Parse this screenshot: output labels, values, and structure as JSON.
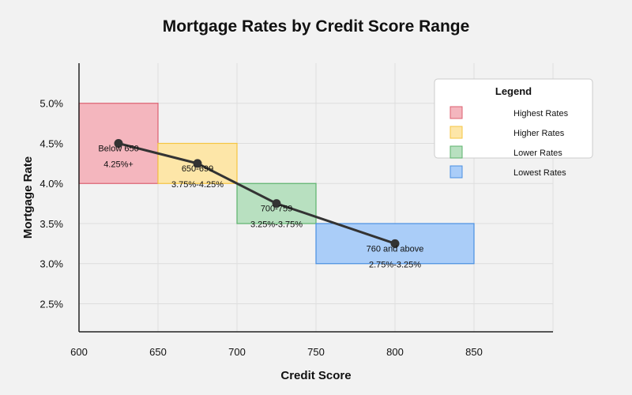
{
  "chart_data": {
    "type": "line",
    "title": "Mortgage Rates by Credit Score Range",
    "xlabel": "Credit Score",
    "ylabel": "Mortgage Rate",
    "xlim": [
      600,
      900
    ],
    "ylim": [
      2.15,
      5.5
    ],
    "x_ticks": [
      600,
      650,
      700,
      750,
      800,
      850
    ],
    "y_ticks": [
      2.5,
      3.0,
      3.5,
      4.0,
      4.5,
      5.0
    ],
    "y_tick_suffix": "%",
    "grid": true,
    "ranges": [
      {
        "label": "Below 650",
        "rate_text": "4.25%+",
        "x0": 600,
        "x1": 650,
        "y0": 4.0,
        "y1": 5.0,
        "category": "Highest Rates"
      },
      {
        "label": "650-699",
        "rate_text": "3.75%-4.25%",
        "x0": 650,
        "x1": 700,
        "y0": 4.0,
        "y1": 4.5,
        "category": "Higher Rates"
      },
      {
        "label": "700-759",
        "rate_text": "3.25%-3.75%",
        "x0": 700,
        "x1": 750,
        "y0": 3.5,
        "y1": 4.0,
        "category": "Lower Rates"
      },
      {
        "label": "760 and above",
        "rate_text": "2.75%-3.25%",
        "x0": 750,
        "x1": 850,
        "y0": 3.0,
        "y1": 3.5,
        "category": "Lowest Rates"
      }
    ],
    "line": {
      "x": [
        625,
        675,
        725,
        800
      ],
      "y": [
        4.5,
        4.25,
        3.75,
        3.25
      ]
    },
    "legend": {
      "title": "Legend",
      "position": "top-right",
      "items": [
        {
          "label": "Highest Rates",
          "fill": "#f4b6be",
          "stroke": "#dc6070"
        },
        {
          "label": "Higher Rates",
          "fill": "#fde6a8",
          "stroke": "#f5c542"
        },
        {
          "label": "Lower Rates",
          "fill": "#b8e0c0",
          "stroke": "#5cb26c"
        },
        {
          "label": "Lowest Rates",
          "fill": "#aacdf8",
          "stroke": "#4a90e2"
        }
      ]
    },
    "line_color": "#333333"
  }
}
